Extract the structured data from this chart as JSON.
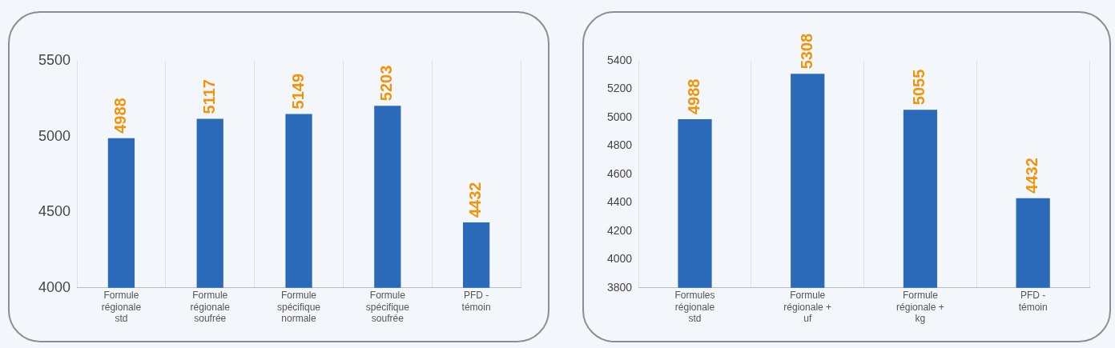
{
  "chart_data": [
    {
      "type": "bar",
      "categories": [
        "Formule régionale std",
        "Formule régionale soufrée",
        "Formule spécifique normale",
        "Formule spécifique soufrée",
        "PFD - témoin"
      ],
      "values": [
        4988,
        5117,
        5149,
        5203,
        4432
      ],
      "color": "#2a6ab8",
      "ylim": [
        4000,
        5500
      ],
      "yticks": [
        4000,
        4500,
        5000,
        5500
      ],
      "grid": "x",
      "data_labels": true
    },
    {
      "type": "bar",
      "categories": [
        "Formules régionale std",
        "Formule régionale + uf",
        "Formule régionale + kg",
        "PFD - témoin"
      ],
      "values": [
        4988,
        5308,
        5055,
        4432
      ],
      "color": "#2a6ab8",
      "ylim": [
        3800,
        5400
      ],
      "yticks": [
        3800,
        4000,
        4200,
        4400,
        4600,
        4800,
        5000,
        5200,
        5400
      ],
      "grid": "x",
      "data_labels": true
    }
  ]
}
